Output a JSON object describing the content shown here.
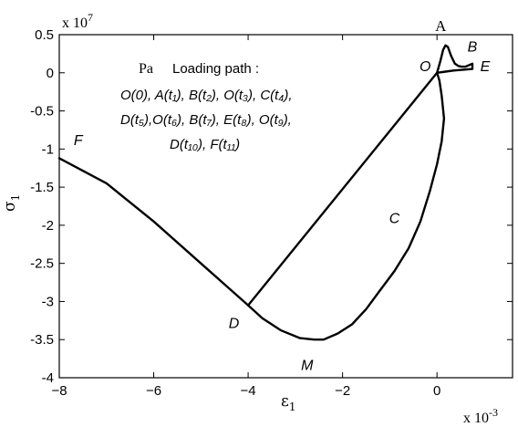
{
  "chart_data": {
    "type": "line",
    "xlabel": "ε",
    "xlabel_sub": "1",
    "ylabel": "σ",
    "ylabel_sub": "1",
    "x_scale_label": "x 10",
    "x_scale_exp": "-3",
    "y_scale_label": "x 10",
    "y_scale_exp": "7",
    "xlim": [
      -8,
      1.6
    ],
    "ylim": [
      -4,
      0.5
    ],
    "xticks": [
      -8,
      -6,
      -4,
      -2,
      0
    ],
    "xtick_labels": [
      "−8",
      "−6",
      "−4",
      "−2",
      "0"
    ],
    "yticks": [
      0.5,
      0,
      -0.5,
      -1,
      -1.5,
      -2,
      -2.5,
      -3,
      -3.5,
      -4
    ],
    "ytick_labels": [
      "0.5",
      "0",
      "-0.5",
      "-1",
      "-1.5",
      "-2",
      "-2.5",
      "-3",
      "-3.5",
      "-4"
    ],
    "grid": false,
    "annotation": {
      "unit": "Pa",
      "heading": "Loading path :",
      "lines": [
        "O(0), A(t₁), B(t₂), O(t₃), C(t₄),",
        "D(t₅),O(t₆), B(t₇), E(t₈), O(t₉),",
        "D(t₁₀), F(t₁₁)"
      ]
    },
    "point_labels": [
      {
        "name": "A",
        "x": 0.08,
        "y": 0.55,
        "style": "upright"
      },
      {
        "name": "B",
        "x": 0.75,
        "y": 0.28,
        "style": "italic"
      },
      {
        "name": "O",
        "x": -0.25,
        "y": 0.02,
        "style": "italic"
      },
      {
        "name": "E",
        "x": 1.02,
        "y": 0.02,
        "style": "italic"
      },
      {
        "name": "F",
        "x": -7.6,
        "y": -0.95,
        "style": "italic"
      },
      {
        "name": "C",
        "x": -0.9,
        "y": -1.97,
        "style": "italic"
      },
      {
        "name": "D",
        "x": -4.3,
        "y": -3.35,
        "style": "italic"
      },
      {
        "name": "M",
        "x": -2.75,
        "y": -3.9,
        "style": "italic"
      }
    ],
    "series": [
      {
        "x": [
          0,
          0.07,
          0.13,
          0.18,
          0.23,
          0.3,
          0.38,
          0.45,
          0.52,
          0.6,
          0.68,
          0.75,
          0.75,
          0.55,
          0.35,
          0.18,
          0.05,
          0,
          0.05,
          0.1,
          0.15,
          0.1,
          0,
          -0.15,
          -0.35,
          -0.6,
          -0.9,
          -1.2,
          -1.5,
          -1.8,
          -2.1,
          -2.4,
          -2.6,
          -2.9,
          -3.3,
          -3.7,
          -4,
          -5,
          -6,
          -7,
          -8
        ],
        "y": [
          0,
          0.15,
          0.3,
          0.36,
          0.34,
          0.22,
          0.12,
          0.09,
          0.08,
          0.08,
          0.1,
          0.12,
          0.05,
          0.04,
          0.03,
          0.015,
          0.005,
          0,
          -0.1,
          -0.3,
          -0.6,
          -0.9,
          -1.2,
          -1.55,
          -1.95,
          -2.3,
          -2.6,
          -2.85,
          -3.1,
          -3.3,
          -3.42,
          -3.5,
          -3.5,
          -3.48,
          -3.38,
          -3.22,
          -3.05,
          -2.5,
          -1.95,
          -1.45,
          -1.12
        ]
      },
      {
        "x": [
          -4,
          0
        ],
        "y": [
          -3.05,
          0
        ]
      }
    ]
  }
}
